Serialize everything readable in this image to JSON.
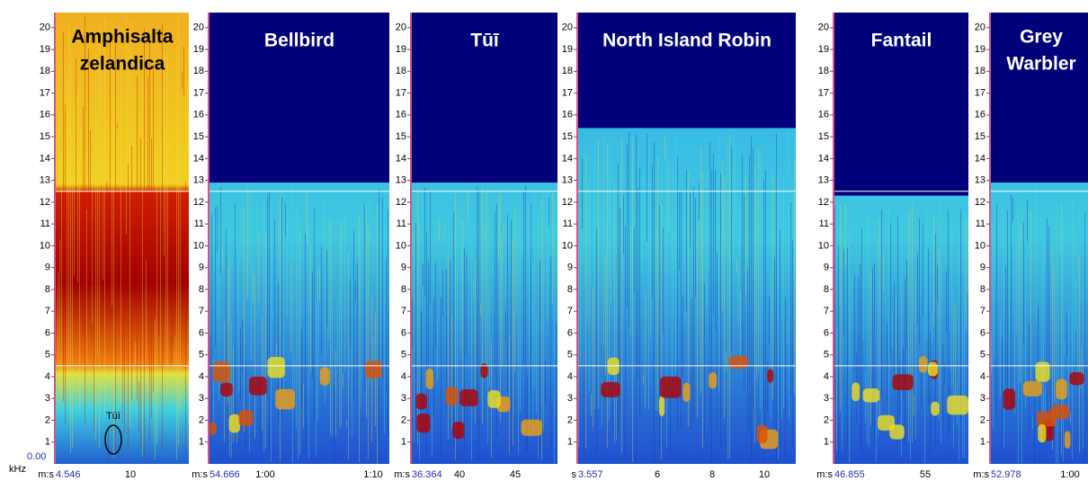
{
  "axis": {
    "unit": "kHz",
    "zero_label": "0.00",
    "y_labels": [
      1,
      2,
      3,
      4,
      5,
      6,
      7,
      8,
      9,
      10,
      11,
      12,
      13,
      14,
      15,
      16,
      17,
      18,
      19,
      20
    ]
  },
  "annotation": "Tūī",
  "panels": [
    {
      "title": [
        "Amphisalta",
        "zelandica"
      ],
      "x_prefix": "m:s",
      "x_start": "4.546",
      "x_ticks": [
        "10"
      ]
    },
    {
      "title": [
        "Bellbird"
      ],
      "x_prefix": "m:s",
      "x_start": "54.666",
      "x_ticks": [
        "1:00",
        "1:10"
      ]
    },
    {
      "title": [
        "Tūī"
      ],
      "x_prefix": "m:s",
      "x_start": "36.364",
      "x_ticks": [
        "40",
        "45"
      ]
    },
    {
      "title": [
        "North Island Robin"
      ],
      "x_prefix": "s",
      "x_start": "3.557",
      "x_ticks": [
        "6",
        "8",
        "10"
      ]
    },
    {
      "title": [
        "Fantail"
      ],
      "x_prefix": "m:s",
      "x_start": "46.855",
      "x_ticks": [
        "55"
      ]
    },
    {
      "title": [
        "Grey",
        "Warbler"
      ],
      "x_prefix": "m:s",
      "x_start": "52.978",
      "x_ticks": [
        "1:00"
      ]
    }
  ]
}
